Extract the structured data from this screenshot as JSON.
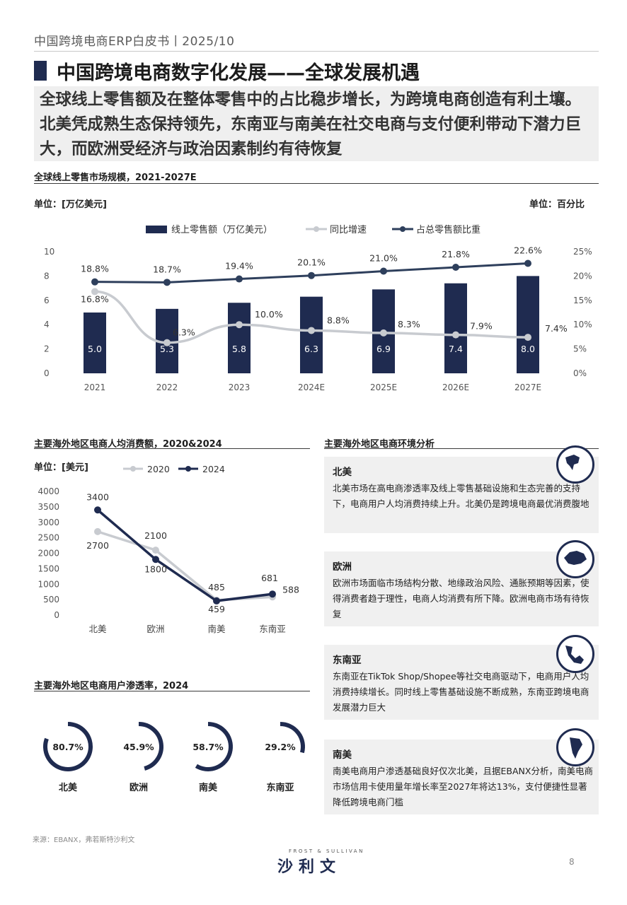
{
  "header": {
    "title": "中国跨境电商ERP白皮书丨2025/10"
  },
  "section": {
    "title": "中国跨境电商数字化发展——全球发展机遇",
    "summary": "全球线上零售额及在整体零售中的占比稳步增长，为跨境电商创造有利土壤。北美凭成熟生态保持领先，东南亚与南美在社交电商与支付便利带动下潜力巨大，而欧洲受经济与政治因素制约有待恢复"
  },
  "chart1": {
    "subtitle": "全球线上零售市场规模，2021-2027E",
    "unit_left": "单位：[万亿美元]",
    "unit_right": "单位：百分比"
  },
  "chart2": {
    "subtitle": "主要海外地区电商人均消费额，2020&2024",
    "unit": "单位：[美元]"
  },
  "chart3": {
    "subtitle": "主要海外地区电商用户渗透率，2024"
  },
  "analysis": {
    "subtitle": "主要海外地区电商环境分析",
    "regions": [
      {
        "name": "北美",
        "icon": "north-america-globe-icon",
        "text": "北美市场在高电商渗透率及线上零售基础设施和生态完善的支持下，电商用户人均消费持续上升。北美仍是跨境电商最优消费腹地"
      },
      {
        "name": "欧洲",
        "icon": "europe-globe-icon",
        "text": "欧洲市场面临市场结构分散、地缘政治风险、通胀预期等因素，使得消费者趋于理性，电商人均消费有所下降。欧洲电商市场有待恢复"
      },
      {
        "name": "东南亚",
        "icon": "southeast-asia-globe-icon",
        "text": "东南亚在TikTok Shop/Shopee等社交电商驱动下，电商用户人均消费持续增长。同时线上零售基础设施不断成熟，东南亚跨境电商发展潜力巨大"
      },
      {
        "name": "南美",
        "icon": "south-america-globe-icon",
        "text": "南美电商用户渗透基础良好仅次北美，且据EBANX分析，南美电商市场信用卡使用量年增长率至2027年将达13%，支付便捷性显著降低跨境电商门槛"
      }
    ]
  },
  "footer": {
    "source": "来源：EBANX，弗若斯特沙利文",
    "logo_top": "FROST & SULLIVAN",
    "logo_main": "沙利文",
    "page": "8"
  },
  "colors": {
    "navy": "#1f2b50",
    "gray": "#c8cbd0",
    "line_dark": "#2e3f5c"
  },
  "chart_data": [
    {
      "type": "bar",
      "categories": [
        "2021",
        "2022",
        "2023",
        "2024E",
        "2025E",
        "2026E",
        "2027E"
      ],
      "series": [
        {
          "name": "线上零售额（万亿美元）",
          "type": "bar",
          "axis": "left",
          "values": [
            5.0,
            5.3,
            5.8,
            6.3,
            6.9,
            7.4,
            8.0
          ],
          "labels": [
            "5.0",
            "5.3",
            "5.8",
            "6.3",
            "6.9",
            "7.4",
            "8.0"
          ]
        },
        {
          "name": "同比增速",
          "type": "line",
          "axis": "right",
          "values": [
            16.8,
            6.3,
            10.0,
            8.8,
            8.3,
            7.9,
            7.4
          ],
          "labels": [
            "16.8%",
            "6.3%",
            "10.0%",
            "8.8%",
            "8.3%",
            "7.9%",
            "7.4%"
          ]
        },
        {
          "name": "占总零售额比重",
          "type": "line",
          "axis": "right",
          "values": [
            18.8,
            18.7,
            19.4,
            20.1,
            21.0,
            21.8,
            22.6
          ],
          "labels": [
            "18.8%",
            "18.7%",
            "19.4%",
            "20.1%",
            "21.0%",
            "21.8%",
            "22.6%"
          ]
        }
      ],
      "y_left": {
        "ticks": [
          "0",
          "2",
          "4",
          "6",
          "8",
          "10"
        ],
        "range": [
          0,
          10
        ]
      },
      "y_right": {
        "ticks": [
          "0%",
          "5%",
          "10%",
          "15%",
          "20%",
          "25%"
        ],
        "range": [
          0,
          25
        ]
      },
      "legend": "top-center",
      "grid": false
    },
    {
      "type": "line",
      "categories": [
        "北美",
        "欧洲",
        "南美",
        "东南亚"
      ],
      "series": [
        {
          "name": "2020",
          "values": [
            2700,
            2100,
            485,
            588
          ],
          "labels": [
            "2700",
            "2100",
            "485",
            "588"
          ]
        },
        {
          "name": "2024",
          "values": [
            3400,
            1800,
            459,
            681
          ],
          "labels": [
            "3400",
            "1800",
            "459",
            "681"
          ]
        }
      ],
      "y": {
        "ticks": [
          "0",
          "500",
          "1000",
          "1500",
          "2000",
          "2500",
          "3000",
          "3500",
          "4000"
        ],
        "range": [
          0,
          4000
        ]
      },
      "legend": "top-center",
      "grid": false
    },
    {
      "type": "pie",
      "categories": [
        "北美",
        "欧洲",
        "南美",
        "东南亚"
      ],
      "values": [
        80.7,
        45.9,
        58.7,
        29.2
      ],
      "labels": [
        "80.7%",
        "45.9%",
        "58.7%",
        "29.2%"
      ],
      "style": "donut-progress"
    }
  ]
}
